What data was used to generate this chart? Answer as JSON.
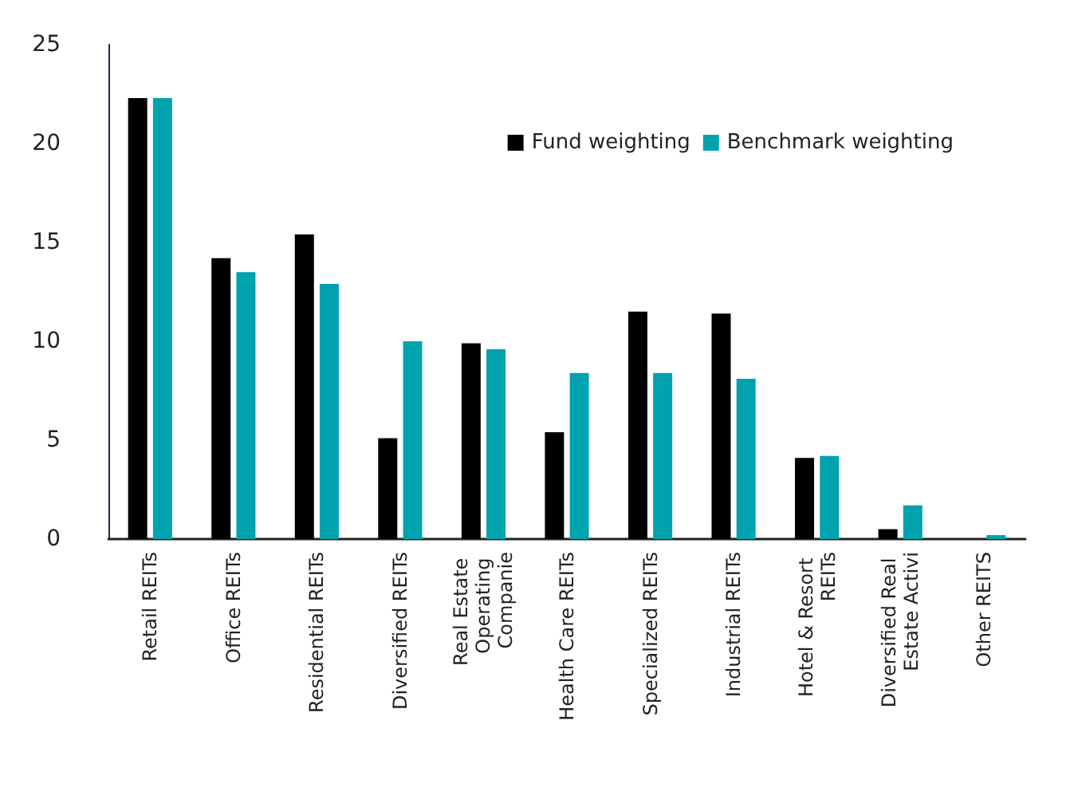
{
  "chart_data": {
    "type": "bar",
    "categories": [
      "Retail REITs",
      "Office REITs",
      "Residential REITs",
      "Diversified REITs",
      "Real Estate Operating Companie",
      "Health Care REITs",
      "Specialized REITs",
      "Industrial REITs",
      "Hotel & Resort REITs",
      "Diversified Real Estate Activi",
      "Other REITS"
    ],
    "series": [
      {
        "name": "Fund weighting",
        "color": "#000000",
        "values": [
          22.3,
          14.2,
          15.4,
          5.1,
          9.9,
          5.4,
          11.5,
          11.4,
          4.1,
          0.5,
          0
        ]
      },
      {
        "name": "Benchmark weighting",
        "color": "#00a3ad",
        "values": [
          22.3,
          13.5,
          12.9,
          10.0,
          9.6,
          8.4,
          8.4,
          8.1,
          4.2,
          1.7,
          0.2
        ]
      }
    ],
    "ylim": [
      0,
      25
    ],
    "yticks": [
      0,
      5,
      10,
      15,
      20,
      25
    ],
    "grid": false,
    "legend": "top right"
  }
}
